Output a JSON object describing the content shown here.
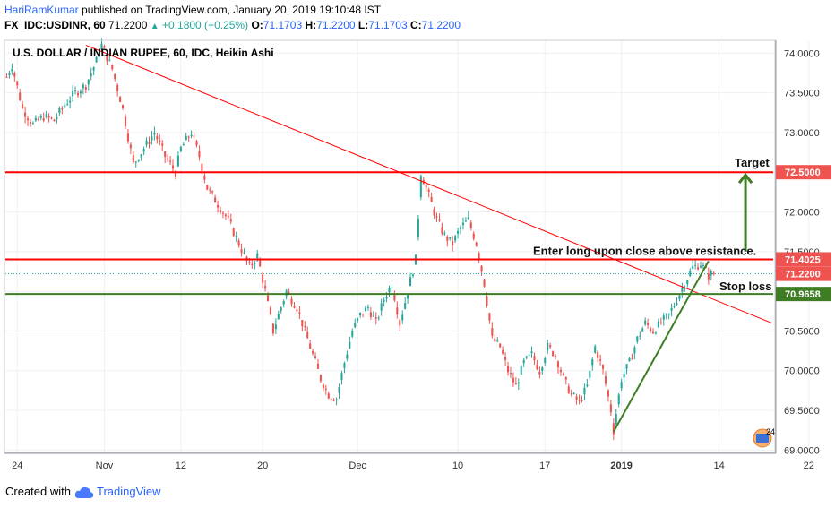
{
  "header": {
    "author": "HariRamKumar",
    "published_text": " published on TradingView.com, January 20, 2019 19:10:48 IST",
    "symbol": "FX_IDC:USDINR, 60",
    "last": "71.2200",
    "change_arrow": "▲",
    "change": "+0.1800 (+0.25%)",
    "o_label": "O:",
    "o_value": "71.1703",
    "h_label": "H:",
    "h_value": "71.2200",
    "l_label": "L:",
    "l_value": "71.1703",
    "c_label": "C:",
    "c_value": "71.2200"
  },
  "footer": {
    "created_with": "Created with",
    "brand": "TradingView",
    "logo_icon": "tradingview-cloud-icon"
  },
  "colors": {
    "up_candle": "#26a69a",
    "down_candle": "#ef5350",
    "red_line": "#ff0000",
    "green_line": "#3e7d23",
    "price_label_bg": "#ef5350",
    "grid": "#eef0f3"
  },
  "chart_data": {
    "type": "candlestick",
    "title": "U.S. DOLLAR / INDIAN RUPEE, 60, IDC, Heikin Ashi",
    "x_ticks": [
      "24",
      "Nov",
      "12",
      "20",
      "Dec",
      "10",
      "17",
      "2019",
      "14",
      "22"
    ],
    "y_ticks": [
      "74.0000",
      "73.5000",
      "73.0000",
      "72.5000",
      "72.0000",
      "71.5000",
      "71.0000",
      "70.5000",
      "70.0000",
      "69.5000",
      "69.0000"
    ],
    "ylim": [
      68.97,
      74.15
    ],
    "price_path": [
      [
        0,
        73.7
      ],
      [
        2,
        73.85
      ],
      [
        6,
        73.3
      ],
      [
        10,
        73.1
      ],
      [
        14,
        73.2
      ],
      [
        18,
        73.15
      ],
      [
        22,
        73.35
      ],
      [
        26,
        73.5
      ],
      [
        30,
        73.6
      ],
      [
        34,
        73.9
      ],
      [
        36,
        74.1
      ],
      [
        40,
        73.8
      ],
      [
        44,
        73.3
      ],
      [
        48,
        72.6
      ],
      [
        52,
        72.8
      ],
      [
        56,
        73.0
      ],
      [
        60,
        72.7
      ],
      [
        64,
        72.5
      ],
      [
        66,
        72.8
      ],
      [
        70,
        73.0
      ],
      [
        73,
        72.7
      ],
      [
        76,
        72.3
      ],
      [
        80,
        72.1
      ],
      [
        84,
        71.9
      ],
      [
        88,
        71.6
      ],
      [
        92,
        71.3
      ],
      [
        95,
        71.45
      ],
      [
        98,
        71.0
      ],
      [
        101,
        70.5
      ],
      [
        103,
        70.7
      ],
      [
        106,
        71.0
      ],
      [
        110,
        70.8
      ],
      [
        113,
        70.5
      ],
      [
        116,
        70.2
      ],
      [
        119,
        69.9
      ],
      [
        122,
        69.7
      ],
      [
        125,
        69.65
      ],
      [
        128,
        70.1
      ],
      [
        131,
        70.5
      ],
      [
        134,
        70.7
      ],
      [
        137,
        70.8
      ],
      [
        140,
        70.6
      ],
      [
        143,
        70.9
      ],
      [
        146,
        71.1
      ],
      [
        149,
        70.6
      ],
      [
        152,
        71.0
      ],
      [
        155,
        71.4
      ],
      [
        157,
        72.5
      ],
      [
        160,
        72.2
      ],
      [
        163,
        71.9
      ],
      [
        166,
        71.7
      ],
      [
        169,
        71.6
      ],
      [
        172,
        71.8
      ],
      [
        175,
        71.9
      ],
      [
        178,
        71.6
      ],
      [
        181,
        71.1
      ],
      [
        184,
        70.4
      ],
      [
        187,
        70.3
      ],
      [
        190,
        70.0
      ],
      [
        193,
        69.8
      ],
      [
        196,
        70.1
      ],
      [
        199,
        70.2
      ],
      [
        202,
        70.0
      ],
      [
        205,
        70.3
      ],
      [
        208,
        70.2
      ],
      [
        211,
        69.9
      ],
      [
        214,
        69.7
      ],
      [
        217,
        69.6
      ],
      [
        220,
        69.8
      ],
      [
        223,
        70.3
      ],
      [
        226,
        70.0
      ],
      [
        229,
        69.5
      ],
      [
        230,
        69.25
      ],
      [
        233,
        69.9
      ],
      [
        236,
        70.1
      ],
      [
        239,
        70.4
      ],
      [
        242,
        70.6
      ],
      [
        245,
        70.5
      ],
      [
        248,
        70.6
      ],
      [
        251,
        70.7
      ],
      [
        254,
        70.9
      ],
      [
        257,
        71.1
      ],
      [
        260,
        71.3
      ],
      [
        263,
        71.35
      ],
      [
        266,
        71.2
      ],
      [
        268,
        71.22
      ]
    ],
    "bar_count": 269,
    "drawings": [
      {
        "kind": "trend",
        "color": "red",
        "from": [
          30,
          74.1
        ],
        "to": [
          290,
          70.6
        ]
      },
      {
        "kind": "hline",
        "color": "red",
        "y": 72.5
      },
      {
        "kind": "hline",
        "color": "red",
        "y": 71.4025
      },
      {
        "kind": "hline",
        "color": "green",
        "y": 70.9658
      },
      {
        "kind": "trend",
        "color": "green",
        "from": [
          230,
          69.23
        ],
        "to": [
          266,
          71.38
        ]
      },
      {
        "kind": "arrow-up",
        "color": "green",
        "at_bar": 280,
        "from_y": 71.5,
        "to_y": 72.5
      }
    ],
    "price_labels": [
      {
        "value": "72.5000",
        "color": "red"
      },
      {
        "value": "71.4025",
        "color": "red"
      },
      {
        "value": "71.2200",
        "color": "red"
      },
      {
        "value": "70.9658",
        "color": "green"
      }
    ],
    "annotations": [
      {
        "text": "Target"
      },
      {
        "text": "Enter long upon close above resistance."
      },
      {
        "text": "Stop loss"
      }
    ],
    "events_badge": "24"
  }
}
